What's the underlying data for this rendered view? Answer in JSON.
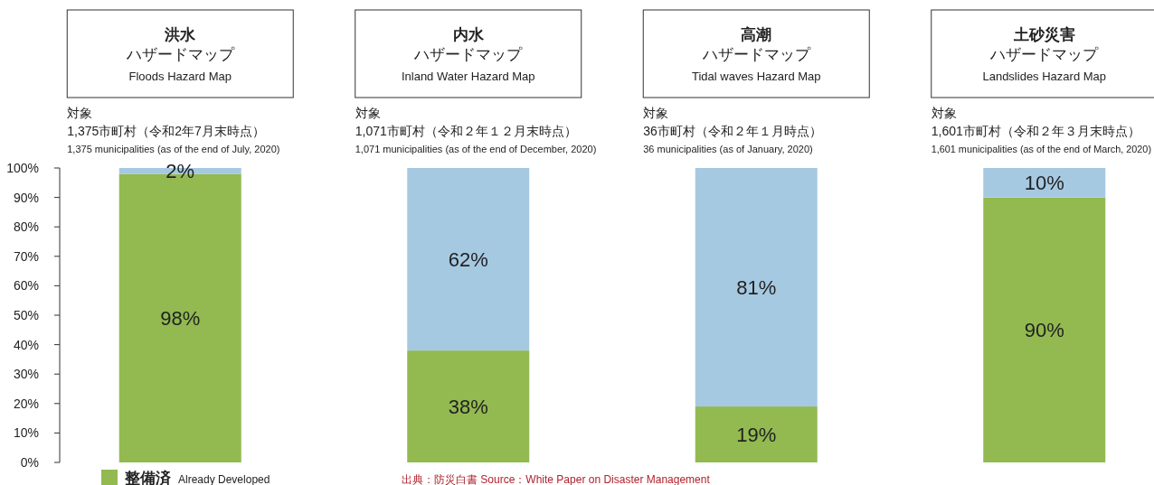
{
  "chart_data": {
    "type": "bar",
    "stacked": true,
    "categories": [
      "洪水ハザードマップ\nFloods Hazard Map",
      "内水ハザードマップ\nInland Water Hazard Map",
      "高潮ハザードマップ\nTidal waves Hazard Map",
      "土砂災害ハザードマップ\nLandslides Hazard Map"
    ],
    "series": [
      {
        "name": "整備済 Already Developed",
        "color": "#93b951",
        "values": [
          98,
          38,
          19,
          90
        ],
        "value_labels": [
          "98%",
          "38%",
          "19%",
          "90%"
        ]
      },
      {
        "color": "#a6c9e2",
        "values": [
          2,
          62,
          81,
          10
        ],
        "value_labels": [
          "2%",
          "62%",
          "81%",
          "10%"
        ]
      }
    ],
    "ylim": [
      0,
      100
    ],
    "yticks": [
      {
        "value": 0,
        "label": "0%"
      },
      {
        "value": 10,
        "label": "10%"
      },
      {
        "value": 20,
        "label": "20%"
      },
      {
        "value": 30,
        "label": "30%"
      },
      {
        "value": 40,
        "label": "40%"
      },
      {
        "value": 50,
        "label": "50%"
      },
      {
        "value": 60,
        "label": "60%"
      },
      {
        "value": 70,
        "label": "70%"
      },
      {
        "value": 80,
        "label": "80%"
      },
      {
        "value": 90,
        "label": "90%"
      },
      {
        "value": 100,
        "label": "100%"
      }
    ],
    "legend": "bottom left",
    "annotations": [
      "対象\n1,375市町村（令和2年7月末時点）\n1,375 municipalities (as of the end of July, 2020)",
      "対象\n1,071市町村（令和２年１２月末時点）\n1,071 municipalities (as of the end of December, 2020)",
      "対象\n36市町村（令和２年１月時点）\n36 municipalities (as of January, 2020)",
      "対象\n1,601市町村（令和２年３月末時点）\n1,601 municipalities (as of the end of March, 2020)",
      "出典：防災白書 Source：White Paper on Disaster Management"
    ]
  }
}
